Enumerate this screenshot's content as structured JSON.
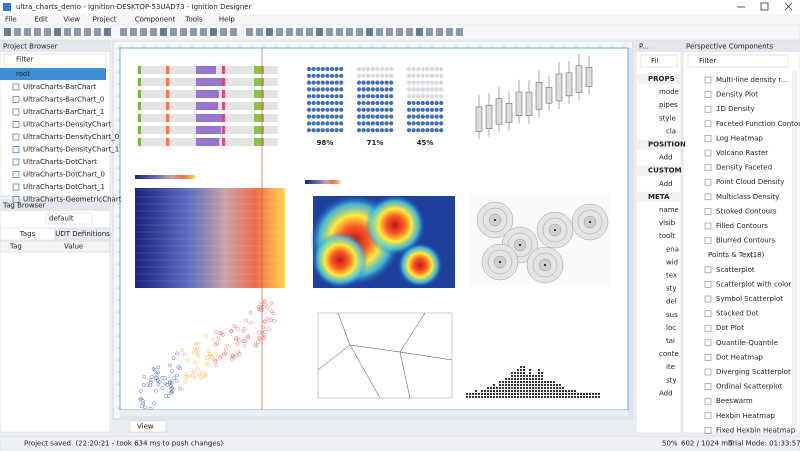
{
  "window": {
    "title": "ultra_charts_demo - Ignition-DESKTOP-53UAD73 - Ignition Designer"
  },
  "menu": [
    "File",
    "Edit",
    "View",
    "Project",
    "Component",
    "Tools",
    "Help"
  ],
  "project_browser": {
    "title": "Project Browser",
    "filter": "Filter",
    "root": "root",
    "items": [
      "UltraCharts-BarChart",
      "UltraCharts-BarChart_0",
      "UltraCharts-BarChart_1",
      "UltraCharts-DensityChart",
      "UltraCharts-DensityChart_0",
      "UltraCharts-DensityChart_1",
      "UltraCharts-DotChart",
      "UltraCharts-DotChart_0",
      "UltraCharts-DotChart_1",
      "UltraCharts-GeometricChart"
    ]
  },
  "tag_browser": {
    "title": "Tag Browser",
    "provider": "default",
    "tabs": [
      "Tags",
      "UDT Definitions"
    ],
    "columns": [
      "Tag",
      "Value"
    ]
  },
  "canvas": {
    "tab": "View",
    "waffle_labels": [
      "98%",
      "71%",
      "45%"
    ]
  },
  "property_editor": {
    "title": "P...",
    "filter": "Fil",
    "sections": [
      {
        "name": "PROPS",
        "rows": [
          "mode",
          "pipes",
          {
            "name": "style",
            "children": [
              "cla"
            ]
          }
        ]
      },
      {
        "name": "POSITION",
        "rows": [
          "Add"
        ]
      },
      {
        "name": "CUSTOM",
        "rows": [
          "Add"
        ]
      },
      {
        "name": "META",
        "rows": [
          "name",
          "visib",
          {
            "name": "toolt",
            "children": [
              "ena",
              "wid",
              "tex",
              "sty",
              "del",
              "sus",
              "loc",
              "tai"
            ]
          },
          {
            "name": "conte",
            "children": [
              "ite",
              "sty"
            ]
          },
          "Add"
        ]
      }
    ]
  },
  "components": {
    "title": "Perspective Components",
    "filter": "Filter",
    "items": [
      "Multi-line density r...",
      "Density Plot",
      "1D Density",
      "Faceted Function Contour",
      "Log Heatmap",
      "Volcano Raster",
      "Density Faceted",
      "Point Cloud Density",
      "Multiclass Density",
      "Stroked Contours",
      "Filled Contours",
      "Blurred Contours"
    ],
    "group": {
      "name": "Points & Text",
      "count": "(18)",
      "items": [
        "Scatterplot",
        "Scatterplot with color",
        "Symbol Scatterplot",
        "Stacked Dot",
        "Dot Plot",
        "Quantile-Quantile",
        "Dot Heatmap",
        "Diverging Scatterplot",
        "Ordinal Scatterplot",
        "Beeswarm",
        "Hexbin Heatmap",
        "Fixed Hexbin Heatmap"
      ]
    }
  },
  "status": {
    "message": "Project saved. (22:20:21 - took 634 ms to push changes)",
    "zoom": "50%",
    "memory": "602 / 1024 mb",
    "trial": "Trial Mode: 01:33:57"
  }
}
